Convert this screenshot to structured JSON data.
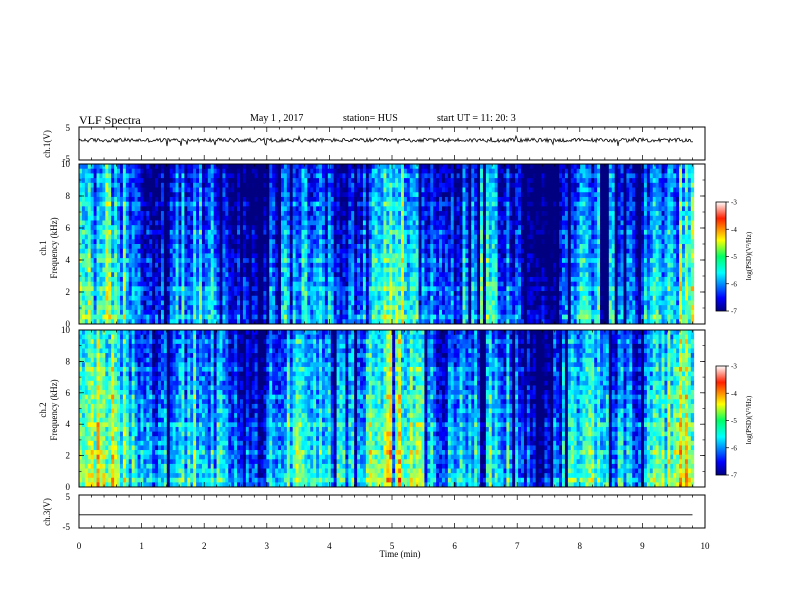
{
  "header": {
    "title": "VLF Spectra",
    "date": "May 1 , 2017",
    "station": "station= HUS",
    "start_time": "start UT = 11: 20: 3"
  },
  "chart_data": [
    {
      "id": "ch1-waveform",
      "type": "line",
      "ylabel": "ch.1(V)",
      "yticks": [
        "5",
        "-5"
      ],
      "ylim": [
        -5,
        5
      ],
      "xlim": [
        0,
        10
      ],
      "baseline": 1,
      "noise_amplitude": 0.6
    },
    {
      "id": "ch1-spectrogram",
      "type": "heatmap",
      "channel_label": "ch.1",
      "ylabel": "Frequency (kHz)",
      "yticks": [
        "0",
        "2",
        "4",
        "6",
        "8",
        "10"
      ],
      "ylim": [
        0,
        10
      ],
      "xlim": [
        0,
        10
      ],
      "data_end_min": 9.82,
      "colorbar": {
        "label": "log(PSD)(V²/Hz)",
        "ticks": [
          "-3",
          "-4",
          "-5",
          "-6",
          "-7"
        ],
        "range": [
          -7,
          -3
        ],
        "colormap": "jet"
      }
    },
    {
      "id": "ch2-spectrogram",
      "type": "heatmap",
      "channel_label": "ch.2",
      "ylabel": "Frequency (kHz)",
      "yticks": [
        "0",
        "2",
        "4",
        "6",
        "8",
        "10"
      ],
      "ylim": [
        0,
        10
      ],
      "xlim": [
        0,
        10
      ],
      "data_end_min": 9.82,
      "colorbar": {
        "label": "log(PSD)(V²/Hz)",
        "ticks": [
          "-3",
          "-4",
          "-5",
          "-6",
          "-7"
        ],
        "range": [
          -7,
          -3
        ],
        "colormap": "jet"
      }
    },
    {
      "id": "ch3-waveform",
      "type": "line",
      "ylabel": "ch.3(V)",
      "yticks": [
        "5",
        "-5"
      ],
      "ylim": [
        -5,
        5
      ],
      "xlim": [
        0,
        10
      ],
      "baseline": -1
    }
  ],
  "xaxis": {
    "label": "Time (min)",
    "ticks": [
      "0",
      "1",
      "2",
      "3",
      "4",
      "5",
      "6",
      "7",
      "8",
      "9",
      "10"
    ]
  },
  "colors": {
    "trace": "#000000",
    "axis": "#000000"
  }
}
